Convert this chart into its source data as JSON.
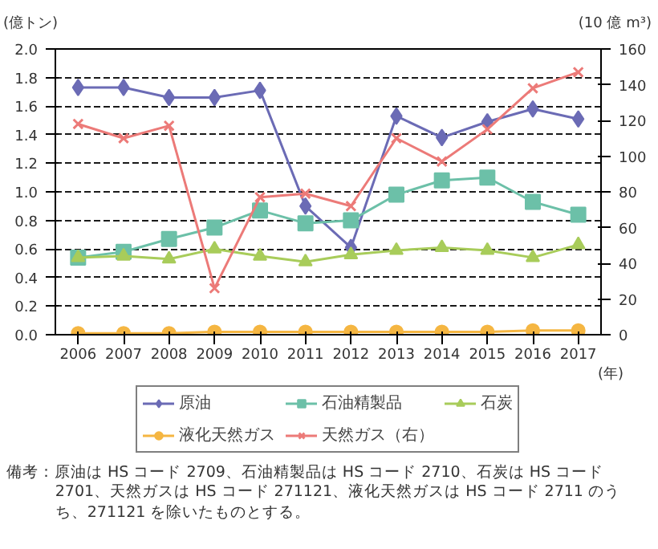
{
  "chart_data": {
    "type": "line",
    "ylabel": "(億トン)",
    "y2label": "(10 億 m³)",
    "xlabel": "(年)",
    "x": [
      2006,
      2007,
      2008,
      2009,
      2010,
      2011,
      2012,
      2013,
      2014,
      2015,
      2016,
      2017
    ],
    "xlim": [
      2005.5,
      2017.5
    ],
    "xticks": [
      2006,
      2007,
      2008,
      2009,
      2010,
      2011,
      2012,
      2013,
      2014,
      2015,
      2016,
      2017
    ],
    "ylim": [
      0,
      2.0
    ],
    "yticks": [
      {
        "value": 0,
        "label": "0.0"
      },
      0.2,
      0.4,
      0.6,
      0.8,
      {
        "value": 1,
        "label": "1.0"
      },
      1.2,
      1.4,
      1.6,
      1.8,
      {
        "value": 2,
        "label": "2.0"
      }
    ],
    "y2lim": [
      0,
      160
    ],
    "y2ticks": [
      0,
      20,
      40,
      60,
      80,
      100,
      120,
      140,
      160
    ],
    "series": [
      {
        "name": "原油",
        "color": "#6b6bb5",
        "marker": "diamond",
        "values": [
          1.73,
          1.73,
          1.66,
          1.66,
          1.71,
          0.9,
          0.61,
          1.53,
          1.38,
          1.49,
          1.58,
          1.51
        ]
      },
      {
        "name": "石油精製品",
        "color": "#6cc0a8",
        "marker": "square",
        "values": [
          0.54,
          0.58,
          0.67,
          0.75,
          0.87,
          0.78,
          0.8,
          0.98,
          1.08,
          1.1,
          0.93,
          0.84
        ]
      },
      {
        "name": "石炭",
        "color": "#a8cc5a",
        "marker": "triangle",
        "values": [
          0.54,
          0.55,
          0.53,
          0.6,
          0.55,
          0.51,
          0.56,
          0.59,
          0.61,
          0.59,
          0.54,
          0.63
        ]
      },
      {
        "name": "液化天然ガス",
        "color": "#f5b642",
        "marker": "circle",
        "values": [
          0.01,
          0.01,
          0.01,
          0.02,
          0.02,
          0.02,
          0.02,
          0.02,
          0.02,
          0.02,
          0.03,
          0.03
        ]
      },
      {
        "name": "天然ガス（右）",
        "color": "#ec7a78",
        "marker": "cross",
        "axis": "y2",
        "values": [
          118,
          110,
          117,
          26,
          77,
          79,
          72,
          110,
          97,
          115,
          138,
          147
        ]
      }
    ],
    "grid": "y",
    "legend": "bottom",
    "line_style": "solid",
    "annotations": [
      "備考：原油は HS コード 2709、石油精製品は HS コード 2710、石炭は HS コード 2701、天然ガスは HS コード 271121、液化天然ガスは HS コード 2711 のうち、271121 を除いたものとする。"
    ]
  }
}
